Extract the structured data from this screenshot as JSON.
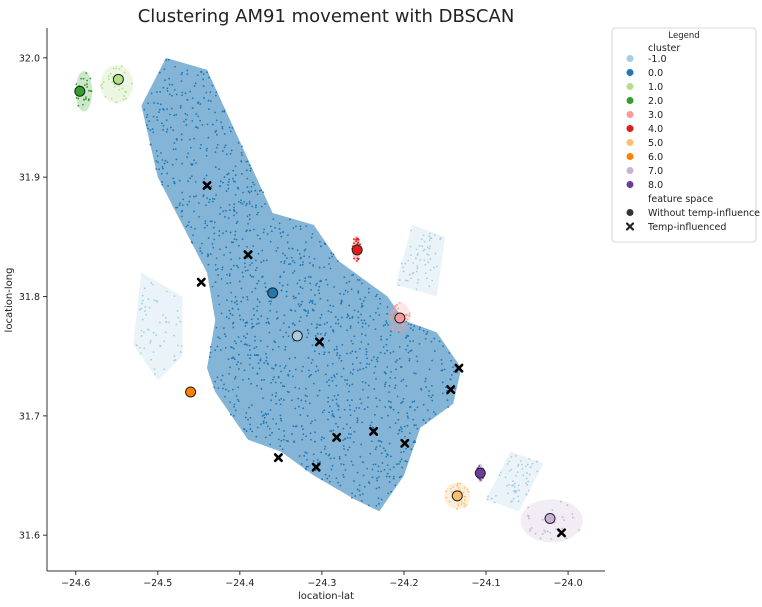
{
  "chart_data": {
    "type": "scatter",
    "title": "Clustering AM91 movement with DBSCAN",
    "xlabel": "location-lat",
    "ylabel": "location-long",
    "xlim": [
      -24.635,
      -23.955
    ],
    "ylim": [
      31.57,
      32.025
    ],
    "xticks": [
      -24.6,
      -24.5,
      -24.4,
      -24.3,
      -24.2,
      -24.1,
      -24.0
    ],
    "xtick_labels": [
      "−24.6",
      "−24.5",
      "−24.4",
      "−24.3",
      "−24.2",
      "−24.1",
      "−24.0"
    ],
    "yticks": [
      31.6,
      31.7,
      31.8,
      31.9,
      32.0
    ],
    "ytick_labels": [
      "31.6",
      "31.7",
      "31.8",
      "31.9",
      "32.0"
    ],
    "grid": false,
    "legend": {
      "title": "Legend",
      "placement": "outside-right",
      "cluster_title": "cluster",
      "clusters": [
        {
          "label": "-1.0",
          "color": "#a6cee3"
        },
        {
          "label": "0.0",
          "color": "#1f78b4"
        },
        {
          "label": "1.0",
          "color": "#b2df8a"
        },
        {
          "label": "2.0",
          "color": "#33a02c"
        },
        {
          "label": "3.0",
          "color": "#fb9a99"
        },
        {
          "label": "4.0",
          "color": "#e31a1c"
        },
        {
          "label": "5.0",
          "color": "#fdbf6f"
        },
        {
          "label": "6.0",
          "color": "#ff7f00"
        },
        {
          "label": "7.0",
          "color": "#cab2d6"
        },
        {
          "label": "8.0",
          "color": "#6a3d9a"
        }
      ],
      "feature_title": "feature space",
      "features": [
        {
          "label": "Without temp-influence",
          "marker": "circle"
        },
        {
          "label": "Temp-influenced",
          "marker": "x"
        }
      ]
    },
    "cluster_regions": [
      {
        "cluster": "0.0",
        "shape": "polygon",
        "points": [
          [
            -24.49,
            32.0
          ],
          [
            -24.44,
            31.99
          ],
          [
            -24.4,
            31.93
          ],
          [
            -24.36,
            31.87
          ],
          [
            -24.31,
            31.86
          ],
          [
            -24.28,
            31.83
          ],
          [
            -24.22,
            31.8
          ],
          [
            -24.2,
            31.78
          ],
          [
            -24.16,
            31.77
          ],
          [
            -24.13,
            31.74
          ],
          [
            -24.14,
            31.71
          ],
          [
            -24.18,
            31.69
          ],
          [
            -24.2,
            31.65
          ],
          [
            -24.23,
            31.62
          ],
          [
            -24.26,
            31.63
          ],
          [
            -24.31,
            31.65
          ],
          [
            -24.35,
            31.67
          ],
          [
            -24.39,
            31.68
          ],
          [
            -24.43,
            31.72
          ],
          [
            -24.44,
            31.74
          ],
          [
            -24.43,
            31.78
          ],
          [
            -24.44,
            31.82
          ],
          [
            -24.47,
            31.86
          ],
          [
            -24.5,
            31.9
          ],
          [
            -24.52,
            31.96
          ]
        ]
      },
      {
        "cluster": "-1.0",
        "shape": "polygon",
        "points": [
          [
            -24.52,
            31.82
          ],
          [
            -24.47,
            31.8
          ],
          [
            -24.47,
            31.75
          ],
          [
            -24.5,
            31.73
          ],
          [
            -24.53,
            31.76
          ]
        ]
      },
      {
        "cluster": "-1.0",
        "shape": "polygon",
        "points": [
          [
            -24.07,
            31.67
          ],
          [
            -24.03,
            31.66
          ],
          [
            -24.06,
            31.62
          ],
          [
            -24.1,
            31.63
          ]
        ]
      },
      {
        "cluster": "-1.0",
        "shape": "polygon",
        "points": [
          [
            -24.19,
            31.86
          ],
          [
            -24.15,
            31.85
          ],
          [
            -24.16,
            31.8
          ],
          [
            -24.21,
            31.81
          ]
        ]
      },
      {
        "cluster": "1.0",
        "shape": "ellipse",
        "cx": -24.55,
        "cy": 31.978,
        "rx": 0.02,
        "ry": 0.016
      },
      {
        "cluster": "2.0",
        "shape": "ellipse",
        "cx": -24.59,
        "cy": 31.972,
        "rx": 0.01,
        "ry": 0.017
      },
      {
        "cluster": "3.0",
        "shape": "ellipse",
        "cx": -24.205,
        "cy": 31.782,
        "rx": 0.013,
        "ry": 0.013
      },
      {
        "cluster": "4.0",
        "shape": "ellipse",
        "cx": -24.258,
        "cy": 31.84,
        "rx": 0.005,
        "ry": 0.011
      },
      {
        "cluster": "5.0",
        "shape": "ellipse",
        "cx": -24.135,
        "cy": 31.633,
        "rx": 0.016,
        "ry": 0.011
      },
      {
        "cluster": "6.0",
        "shape": "ellipse",
        "cx": -24.46,
        "cy": 31.72,
        "rx": 0.004,
        "ry": 0.004
      },
      {
        "cluster": "7.0",
        "shape": "ellipse",
        "cx": -24.02,
        "cy": 31.612,
        "rx": 0.038,
        "ry": 0.018
      },
      {
        "cluster": "8.0",
        "shape": "ellipse",
        "cx": -24.107,
        "cy": 31.652,
        "rx": 0.004,
        "ry": 0.008
      }
    ],
    "centroids_without_temp": [
      {
        "cluster": "-1.0",
        "x": -24.33,
        "y": 31.767
      },
      {
        "cluster": "0.0",
        "x": -24.36,
        "y": 31.803
      },
      {
        "cluster": "1.0",
        "x": -24.548,
        "y": 31.982
      },
      {
        "cluster": "2.0",
        "x": -24.595,
        "y": 31.972
      },
      {
        "cluster": "3.0",
        "x": -24.205,
        "y": 31.782
      },
      {
        "cluster": "4.0",
        "x": -24.257,
        "y": 31.839
      },
      {
        "cluster": "5.0",
        "x": -24.135,
        "y": 31.633
      },
      {
        "cluster": "6.0",
        "x": -24.46,
        "y": 31.72
      },
      {
        "cluster": "7.0",
        "x": -24.022,
        "y": 31.614
      },
      {
        "cluster": "8.0",
        "x": -24.107,
        "y": 31.652
      }
    ],
    "centroids_temp_influenced": [
      {
        "x": -24.44,
        "y": 31.893
      },
      {
        "x": -24.39,
        "y": 31.835
      },
      {
        "x": -24.447,
        "y": 31.812
      },
      {
        "x": -24.303,
        "y": 31.762
      },
      {
        "x": -24.133,
        "y": 31.74
      },
      {
        "x": -24.143,
        "y": 31.722
      },
      {
        "x": -24.282,
        "y": 31.682
      },
      {
        "x": -24.237,
        "y": 31.687
      },
      {
        "x": -24.199,
        "y": 31.677
      },
      {
        "x": -24.353,
        "y": 31.665
      },
      {
        "x": -24.307,
        "y": 31.657
      },
      {
        "x": -24.008,
        "y": 31.602
      }
    ]
  }
}
